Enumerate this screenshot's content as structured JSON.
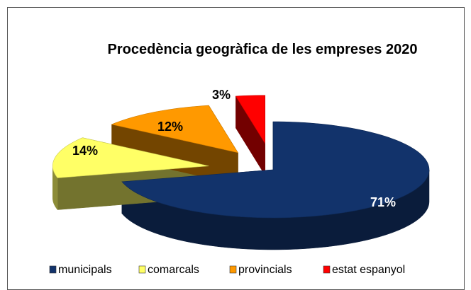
{
  "chart_data": {
    "type": "pie",
    "title": "Procedència geogràfica de les empreses 2020",
    "categories": [
      "municipals",
      "comarcals",
      "provincials",
      "estat espanyol"
    ],
    "values": [
      71,
      14,
      12,
      3
    ],
    "value_labels": [
      "71%",
      "14%",
      "12%",
      "3%"
    ],
    "colors": [
      "#12336b",
      "#ffff66",
      "#ff9900",
      "#ff0000"
    ],
    "legend": "bottom"
  }
}
